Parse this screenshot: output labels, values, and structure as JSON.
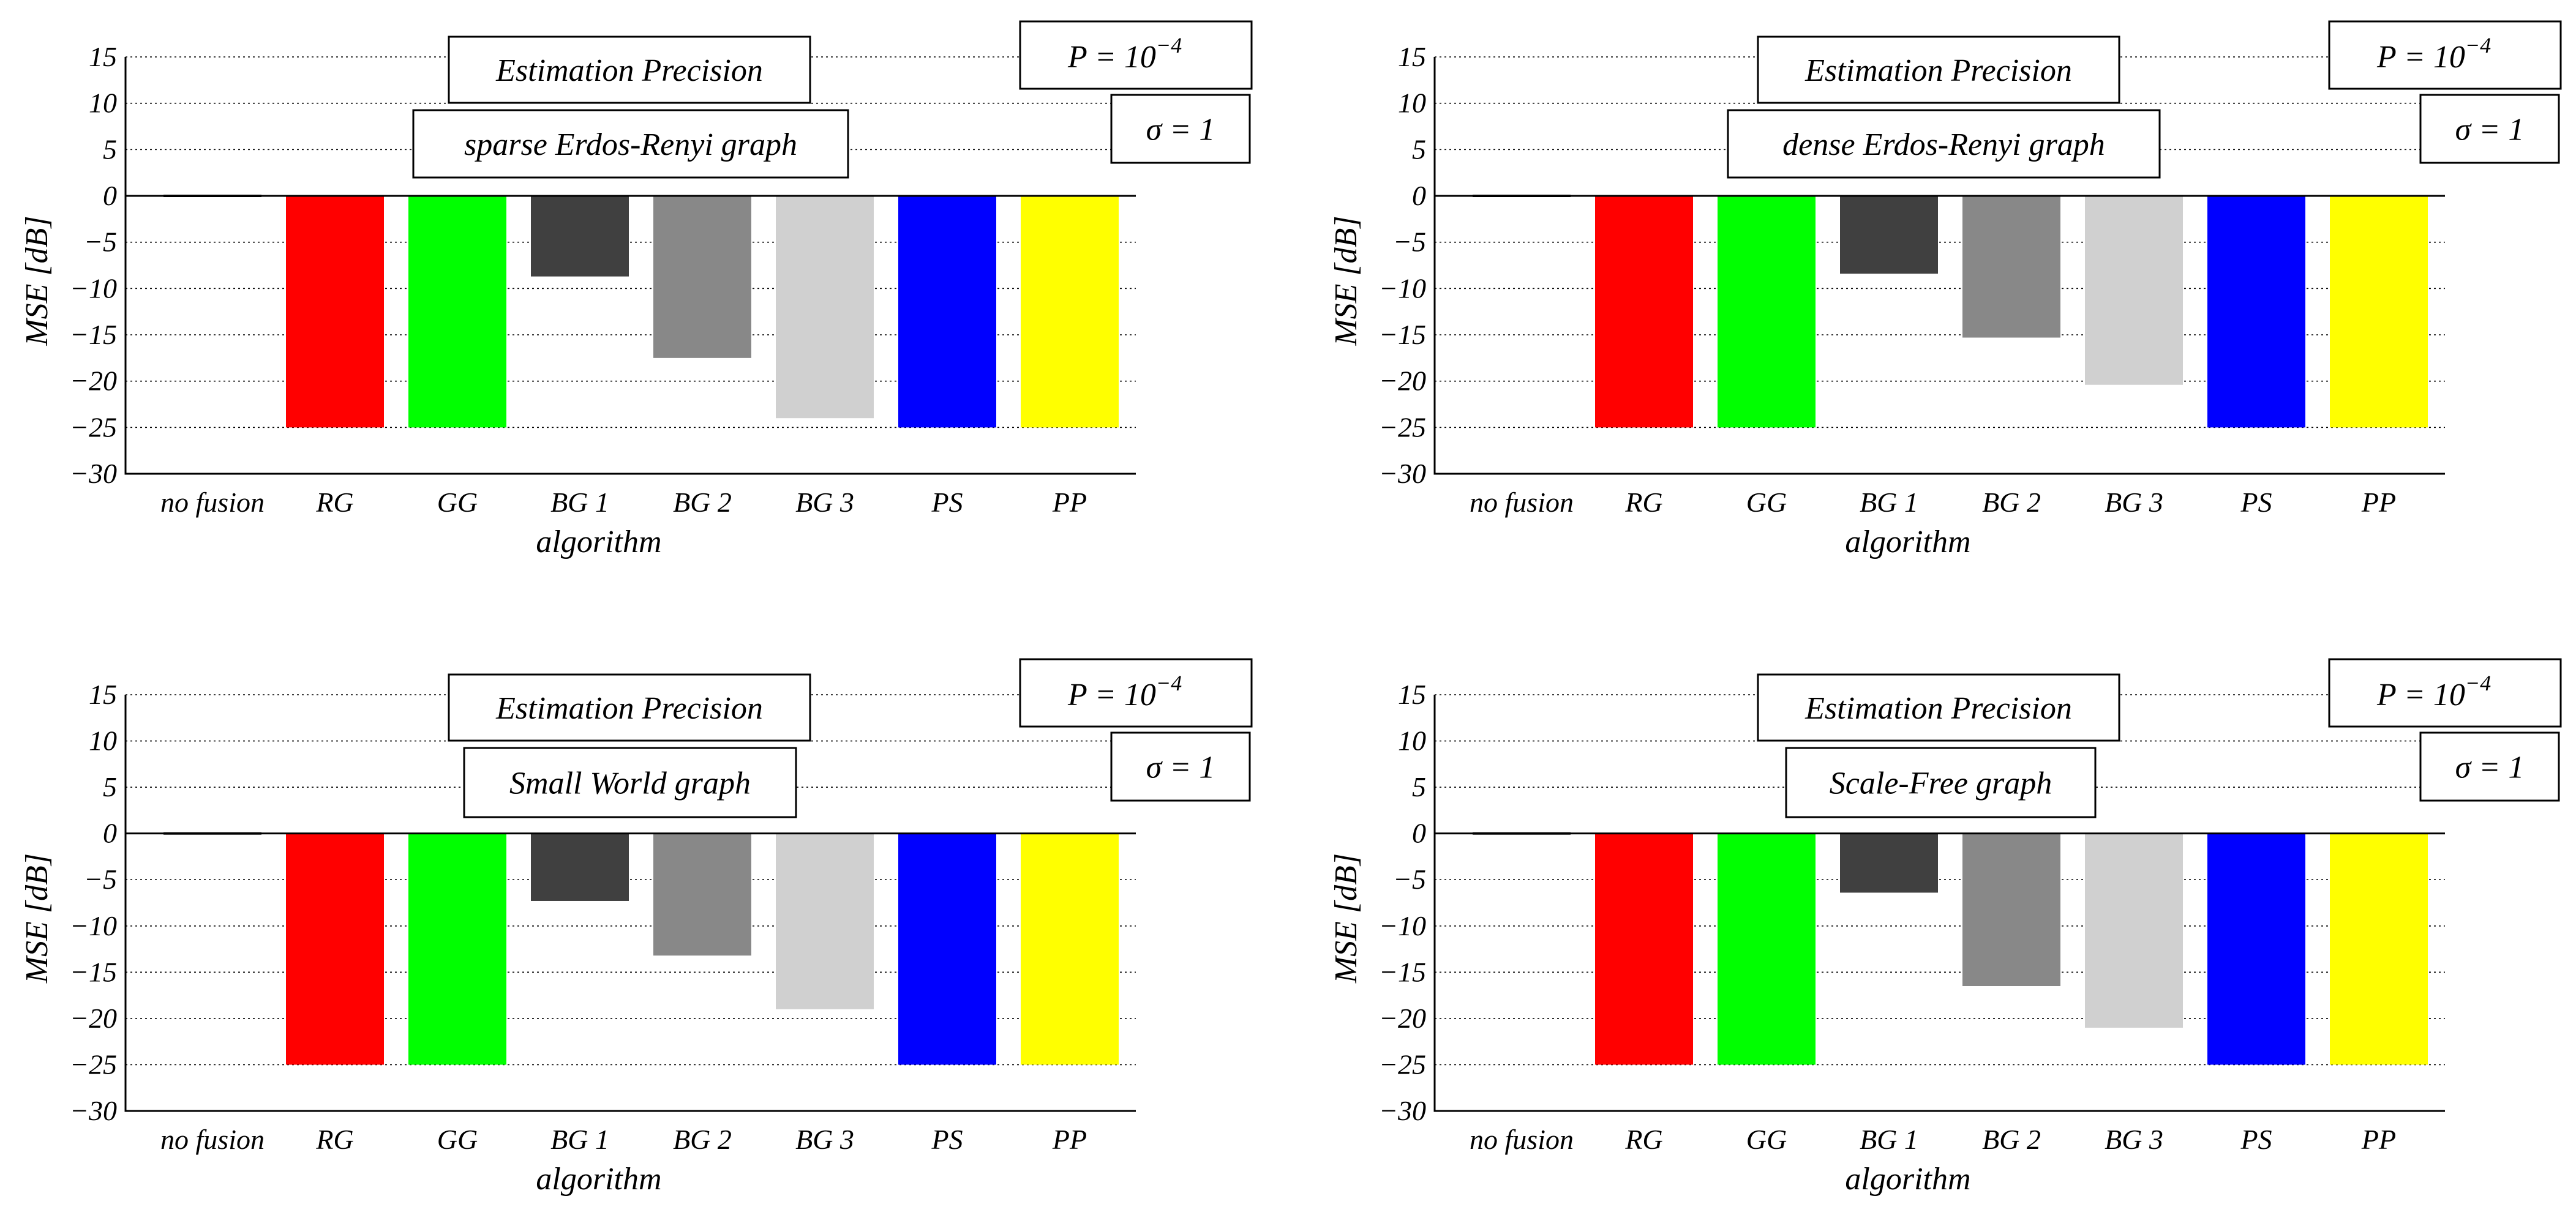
{
  "chart_data": [
    {
      "type": "bar",
      "title": "Estimation Precision",
      "subtitle": "sparse Erdos-Renyi graph",
      "param_p": "P = 10",
      "param_p_exponent": "−4",
      "param_sigma": "σ = 1",
      "xlabel": "algorithm",
      "ylabel": "MSE [dB]",
      "ylim": [
        -30,
        15
      ],
      "yticks": [
        15,
        10,
        5,
        0,
        -5,
        -10,
        -15,
        -20,
        -25,
        -30
      ],
      "ytick_labels": [
        "15",
        "10",
        "5",
        "0",
        "−5",
        "−10",
        "−15",
        "−20",
        "−25",
        "−30"
      ],
      "grid": true,
      "categories": [
        "no fusion",
        "RG",
        "GG",
        "BG 1",
        "BG 2",
        "BG 3",
        "PS",
        "PP"
      ],
      "values": [
        0,
        -25,
        -25,
        -8.7,
        -17.5,
        -24,
        -25,
        -25
      ],
      "colors": [
        "#000000",
        "#ff0000",
        "#00ff00",
        "#404040",
        "#888888",
        "#d0d0d0",
        "#0000ff",
        "#ffff00"
      ]
    },
    {
      "type": "bar",
      "title": "Estimation Precision",
      "subtitle": "dense Erdos-Renyi graph",
      "param_p": "P = 10",
      "param_p_exponent": "−4",
      "param_sigma": "σ = 1",
      "xlabel": "algorithm",
      "ylabel": "MSE [dB]",
      "ylim": [
        -30,
        15
      ],
      "yticks": [
        15,
        10,
        5,
        0,
        -5,
        -10,
        -15,
        -20,
        -25,
        -30
      ],
      "ytick_labels": [
        "15",
        "10",
        "5",
        "0",
        "−5",
        "−10",
        "−15",
        "−20",
        "−25",
        "−30"
      ],
      "grid": true,
      "categories": [
        "no fusion",
        "RG",
        "GG",
        "BG 1",
        "BG 2",
        "BG 3",
        "PS",
        "PP"
      ],
      "values": [
        0,
        -25,
        -25,
        -8.4,
        -15.3,
        -20.4,
        -25,
        -25
      ],
      "colors": [
        "#000000",
        "#ff0000",
        "#00ff00",
        "#404040",
        "#888888",
        "#d0d0d0",
        "#0000ff",
        "#ffff00"
      ]
    },
    {
      "type": "bar",
      "title": "Estimation Precision",
      "subtitle": "Small World graph",
      "param_p": "P = 10",
      "param_p_exponent": "−4",
      "param_sigma": "σ = 1",
      "xlabel": "algorithm",
      "ylabel": "MSE [dB]",
      "ylim": [
        -30,
        15
      ],
      "yticks": [
        15,
        10,
        5,
        0,
        -5,
        -10,
        -15,
        -20,
        -25,
        -30
      ],
      "ytick_labels": [
        "15",
        "10",
        "5",
        "0",
        "−5",
        "−10",
        "−15",
        "−20",
        "−25",
        "−30"
      ],
      "grid": true,
      "categories": [
        "no fusion",
        "RG",
        "GG",
        "BG 1",
        "BG 2",
        "BG 3",
        "PS",
        "PP"
      ],
      "values": [
        0,
        -25,
        -25,
        -7.3,
        -13.2,
        -19,
        -25,
        -25
      ],
      "colors": [
        "#000000",
        "#ff0000",
        "#00ff00",
        "#404040",
        "#888888",
        "#d0d0d0",
        "#0000ff",
        "#ffff00"
      ]
    },
    {
      "type": "bar",
      "title": "Estimation Precision",
      "subtitle": "Scale-Free graph",
      "param_p": "P = 10",
      "param_p_exponent": "−4",
      "param_sigma": "σ = 1",
      "xlabel": "algorithm",
      "ylabel": "MSE [dB]",
      "ylim": [
        -30,
        15
      ],
      "yticks": [
        15,
        10,
        5,
        0,
        -5,
        -10,
        -15,
        -20,
        -25,
        -30
      ],
      "ytick_labels": [
        "15",
        "10",
        "5",
        "0",
        "−5",
        "−10",
        "−15",
        "−20",
        "−25",
        "−30"
      ],
      "grid": true,
      "categories": [
        "no fusion",
        "RG",
        "GG",
        "BG 1",
        "BG 2",
        "BG 3",
        "PS",
        "PP"
      ],
      "values": [
        0,
        -25,
        -25,
        -6.4,
        -16.5,
        -21,
        -25,
        -25
      ],
      "colors": [
        "#000000",
        "#ff0000",
        "#00ff00",
        "#404040",
        "#888888",
        "#d0d0d0",
        "#0000ff",
        "#ffff00"
      ]
    }
  ]
}
